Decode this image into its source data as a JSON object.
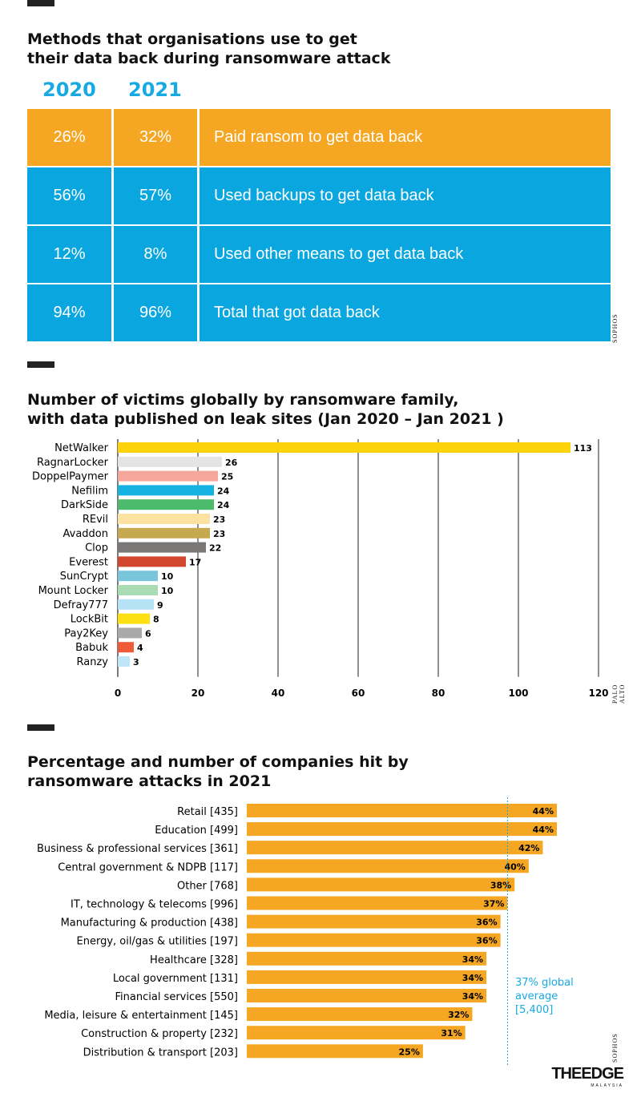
{
  "section1": {
    "title_line1": "Methods that organisations use to get",
    "title_line2": "their data back during ransomware attack",
    "year_a": "2020",
    "year_b": "2021",
    "rows": [
      {
        "a": "26%",
        "b": "32%",
        "label": "Paid ransom to get data back",
        "color": "#f5a623"
      },
      {
        "a": "56%",
        "b": "57%",
        "label": "Used backups to get data back",
        "color": "#0aa6e0"
      },
      {
        "a": "12%",
        "b": "8%",
        "label": "Used other means to get data back",
        "color": "#0aa6e0"
      },
      {
        "a": "94%",
        "b": "96%",
        "label": "Total that got data back",
        "color": "#0aa6e0"
      }
    ],
    "source": "SOPHOS"
  },
  "section2": {
    "title_line1": "Number of victims globally by ransomware family,",
    "title_line2": "with data published on leak sites (Jan 2020 – Jan 2021 )",
    "source": "PALO ALTO"
  },
  "section3": {
    "title_line1": "Percentage and number of companies hit by",
    "title_line2": "ransomware attacks in 2021",
    "avg_line1": "37% global",
    "avg_line2": "average",
    "avg_line3": "[5,400]",
    "source": "SOPHOS"
  },
  "logo": {
    "main": "THEEDGE",
    "sub": "MALAYSIA"
  },
  "chart_data": [
    {
      "type": "bar",
      "orientation": "horizontal",
      "categories": [
        "NetWalker",
        "RagnarLocker",
        "DoppelPaymer",
        "Nefilim",
        "DarkSide",
        "REvil",
        "Avaddon",
        "Clop",
        "Everest",
        "SunCrypt",
        "Mount Locker",
        "Defray777",
        "LockBit",
        "Pay2Key",
        "Babuk",
        "Ranzy"
      ],
      "values": [
        113,
        26,
        25,
        24,
        24,
        23,
        23,
        22,
        17,
        10,
        10,
        9,
        8,
        6,
        4,
        3
      ],
      "colors": [
        "#fcd30a",
        "#e4e4e4",
        "#f4a79a",
        "#16b3e2",
        "#4cbb6c",
        "#fde1a0",
        "#c6a94e",
        "#7a7777",
        "#d2482f",
        "#79c5dc",
        "#a9dcb3",
        "#b6e2f5",
        "#fde012",
        "#a9a9a9",
        "#ef5a38",
        "#bfe6f8"
      ],
      "xlim": [
        0,
        120
      ],
      "xticks": [
        0,
        20,
        40,
        60,
        80,
        100,
        120
      ],
      "grid": true
    },
    {
      "type": "bar",
      "orientation": "horizontal",
      "categories": [
        "Retail [435]",
        "Education [499]",
        "Business & professional services [361]",
        "Central government & NDPB [117]",
        "Other [768]",
        "IT, technology & telecoms [996]",
        "Manufacturing & production [438]",
        "Energy, oil/gas & utilities [197]",
        "Healthcare [328]",
        "Local government [131]",
        "Financial services [550]",
        "Media, leisure & entertainment [145]",
        "Construction & property [232]",
        "Distribution & transport [203]"
      ],
      "values": [
        44,
        44,
        42,
        40,
        38,
        37,
        36,
        36,
        34,
        34,
        34,
        32,
        31,
        25
      ],
      "value_labels": [
        "44%",
        "44%",
        "42%",
        "40%",
        "38%",
        "37%",
        "36%",
        "36%",
        "34%",
        "34%",
        "34%",
        "32%",
        "31%",
        "25%"
      ],
      "bar_color": "#f5a623",
      "reference_line": 37,
      "xlim": [
        0,
        44
      ]
    }
  ]
}
